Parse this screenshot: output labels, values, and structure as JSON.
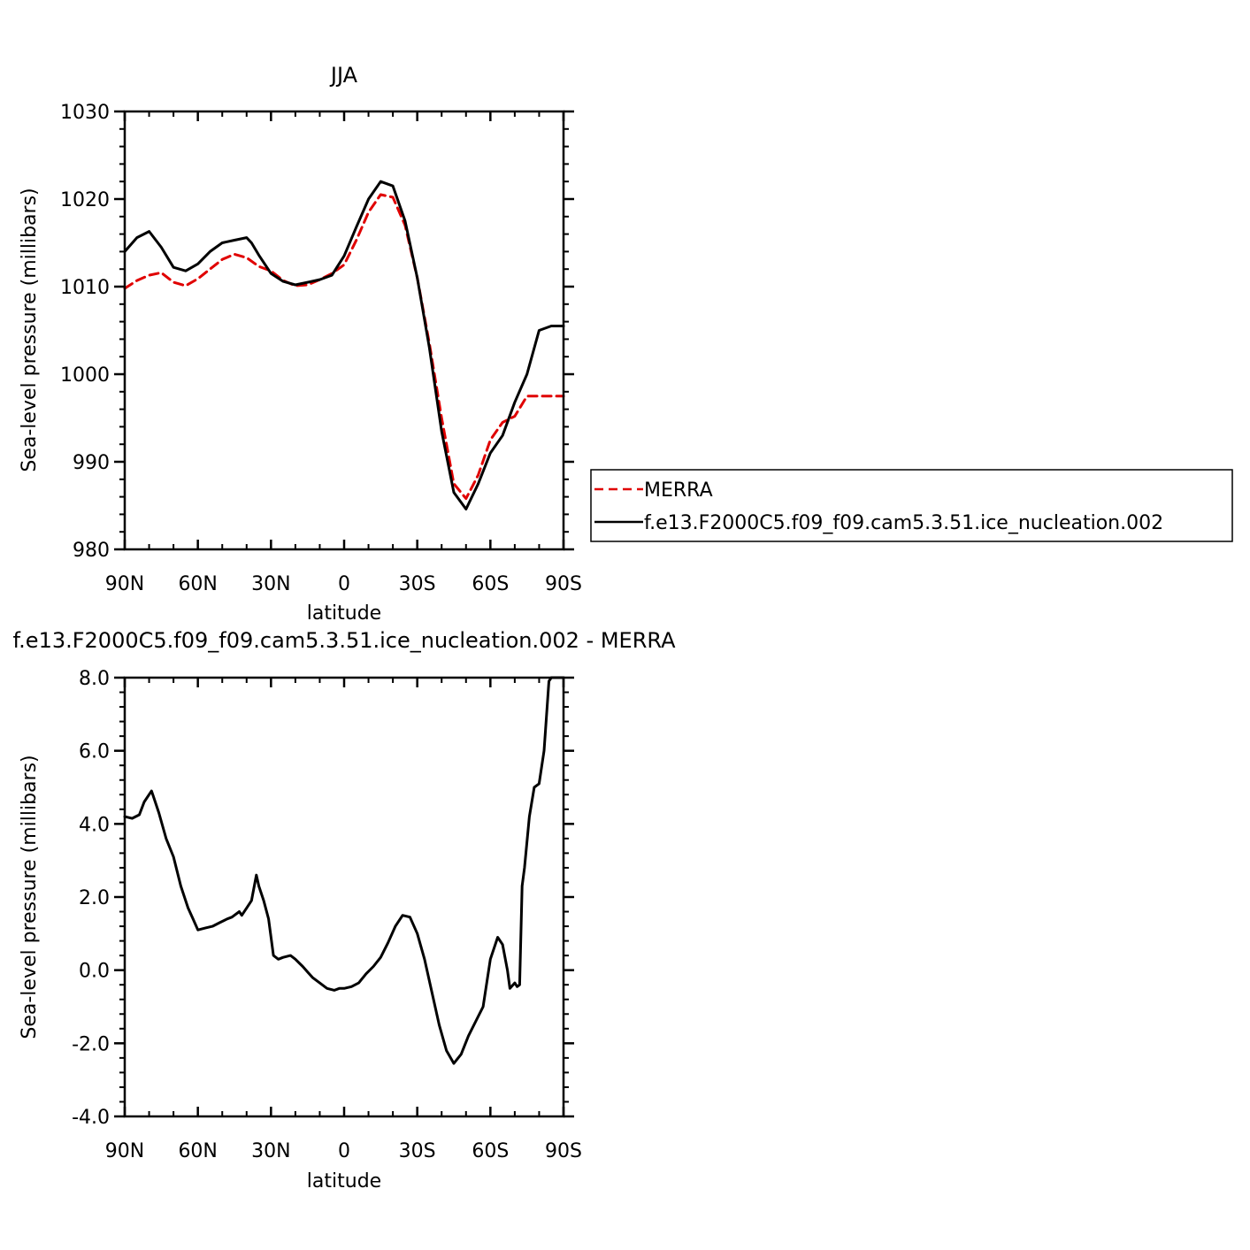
{
  "chart_data": [
    {
      "type": "line",
      "title": "JJA",
      "xlabel": "latitude",
      "ylabel": "Sea-level pressure (millibars)",
      "xlim": [
        90,
        -90
      ],
      "ylim": [
        980,
        1030
      ],
      "xticks": [
        90,
        60,
        30,
        0,
        -30,
        -60,
        -90
      ],
      "xtick_labels": [
        "90N",
        "60N",
        "30N",
        "0",
        "30S",
        "60S",
        "90S"
      ],
      "yticks": [
        980,
        990,
        1000,
        1010,
        1020,
        1030
      ],
      "ytick_labels": [
        "980",
        "990",
        "1000",
        "1010",
        "1020",
        "1030"
      ],
      "legend_position": "right",
      "series": [
        {
          "name": "MERRA",
          "color": "#e00000",
          "dash": true,
          "x": [
            90,
            85,
            80,
            75,
            70,
            65,
            60,
            55,
            50,
            45,
            40,
            35,
            30,
            25,
            20,
            15,
            10,
            5,
            0,
            -5,
            -10,
            -15,
            -20,
            -25,
            -30,
            -35,
            -40,
            -45,
            -50,
            -55,
            -60,
            -65,
            -70,
            -75,
            -80,
            -85,
            -90
          ],
          "values": [
            1009.8,
            1010.7,
            1011.3,
            1011.6,
            1010.5,
            1010.1,
            1010.9,
            1012.0,
            1013.1,
            1013.7,
            1013.3,
            1012.3,
            1011.8,
            1010.7,
            1010.1,
            1010.2,
            1010.8,
            1011.5,
            1012.5,
            1015.3,
            1018.5,
            1020.5,
            1020.2,
            1017.0,
            1011.0,
            1003.5,
            995.0,
            987.5,
            985.8,
            988.5,
            992.5,
            994.5,
            995.2,
            997.5,
            997.5,
            997.5,
            997.5
          ]
        },
        {
          "name": "f.e13.F2000C5.f09_f09.cam5.3.51.ice_nucleation.002",
          "color": "#000000",
          "dash": false,
          "x": [
            90,
            85,
            80,
            75,
            70,
            65,
            60,
            55,
            50,
            45,
            40,
            38,
            35,
            30,
            25,
            20,
            15,
            10,
            5,
            0,
            -5,
            -10,
            -15,
            -20,
            -25,
            -30,
            -35,
            -40,
            -45,
            -50,
            -55,
            -60,
            -65,
            -70,
            -75,
            -80,
            -85,
            -90
          ],
          "values": [
            1014.0,
            1015.6,
            1016.3,
            1014.5,
            1012.2,
            1011.8,
            1012.6,
            1014.0,
            1015.0,
            1015.3,
            1015.6,
            1015.0,
            1013.6,
            1011.5,
            1010.6,
            1010.2,
            1010.5,
            1010.8,
            1011.3,
            1013.5,
            1016.8,
            1020.0,
            1022.0,
            1021.5,
            1017.5,
            1011.0,
            1003.0,
            993.5,
            986.5,
            984.6,
            987.5,
            991.0,
            993.0,
            996.8,
            1000.0,
            1005.0,
            1005.5,
            1005.5
          ]
        }
      ]
    },
    {
      "type": "line",
      "title": "f.e13.F2000C5.f09_f09.cam5.3.51.ice_nucleation.002 - MERRA",
      "xlabel": "latitude",
      "ylabel": "Sea-level pressure (millibars)",
      "xlim": [
        90,
        -90
      ],
      "ylim": [
        -4.0,
        8.0
      ],
      "xticks": [
        90,
        60,
        30,
        0,
        -30,
        -60,
        -90
      ],
      "xtick_labels": [
        "90N",
        "60N",
        "30N",
        "0",
        "30S",
        "60S",
        "90S"
      ],
      "yticks": [
        -4,
        -2,
        0,
        2,
        4,
        6,
        8
      ],
      "ytick_labels": [
        "-4.0",
        "-2.0",
        "0.0",
        "2.0",
        "4.0",
        "6.0",
        "8.0"
      ],
      "series": [
        {
          "name": "",
          "color": "#000000",
          "dash": false,
          "x": [
            90,
            87,
            84,
            82,
            79,
            78,
            76,
            73,
            70,
            67,
            64,
            62,
            60,
            57,
            54,
            51,
            48,
            46,
            43,
            42,
            40,
            38,
            36,
            35,
            33,
            31,
            29,
            27,
            25,
            22,
            20,
            17,
            15,
            13,
            10,
            7,
            4,
            2,
            0,
            -3,
            -6,
            -9,
            -12,
            -15,
            -18,
            -21,
            -24,
            -27,
            -30,
            -33,
            -36,
            -39,
            -42,
            -45,
            -48,
            -51,
            -54,
            -57,
            -60,
            -63,
            -65,
            -67,
            -68,
            -70,
            -71,
            -72,
            -73,
            -74,
            -76,
            -78,
            -80,
            -82,
            -84,
            -85,
            -86,
            -87,
            -88,
            -89,
            -90
          ],
          "values": [
            4.2,
            4.15,
            4.25,
            4.6,
            4.9,
            4.7,
            4.3,
            3.6,
            3.1,
            2.3,
            1.7,
            1.4,
            1.1,
            1.15,
            1.2,
            1.3,
            1.4,
            1.45,
            1.6,
            1.5,
            1.7,
            1.9,
            2.6,
            2.3,
            1.9,
            1.4,
            0.4,
            0.3,
            0.35,
            0.4,
            0.3,
            0.1,
            -0.05,
            -0.2,
            -0.35,
            -0.5,
            -0.55,
            -0.5,
            -0.5,
            -0.45,
            -0.35,
            -0.1,
            0.1,
            0.35,
            0.75,
            1.2,
            1.5,
            1.45,
            1.0,
            0.3,
            -0.6,
            -1.5,
            -2.2,
            -2.55,
            -2.3,
            -1.8,
            -1.4,
            -1.0,
            0.3,
            0.9,
            0.7,
            0.0,
            -0.5,
            -0.35,
            -0.45,
            -0.4,
            2.3,
            2.8,
            4.2,
            5.0,
            5.1,
            6.0,
            7.9,
            8.0,
            8.0,
            8.0,
            8.0,
            8.0,
            8.0
          ]
        }
      ]
    }
  ]
}
